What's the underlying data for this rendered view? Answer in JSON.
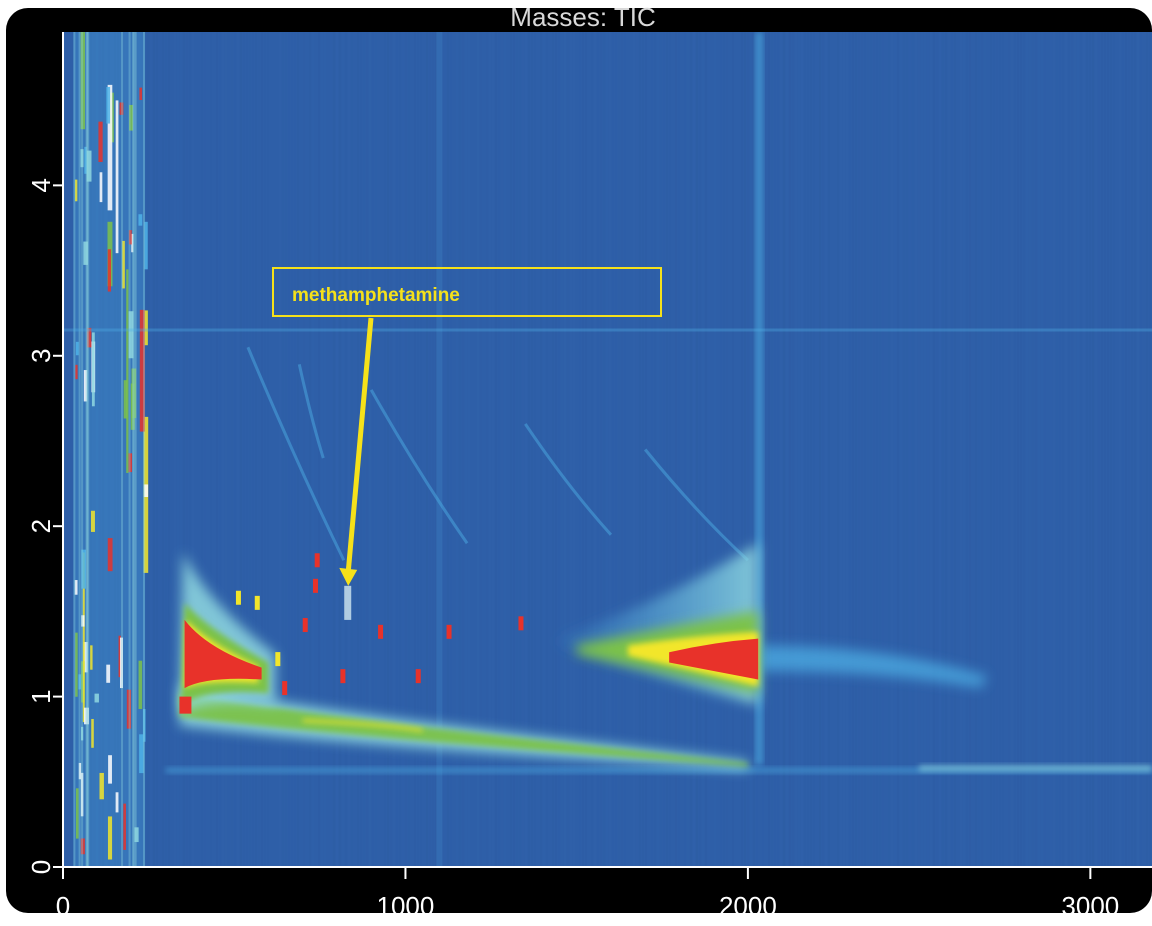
{
  "chart_data": {
    "type": "heatmap",
    "title": "Masses:  TIC",
    "xlabel": "",
    "ylabel": "",
    "xlim": [
      0,
      3180
    ],
    "ylim": [
      0,
      4.9
    ],
    "x_ticks": [
      "0",
      "1000",
      "2000",
      "3000"
    ],
    "y_ticks": [
      "0",
      "1",
      "2",
      "3",
      "4"
    ],
    "colormap": [
      "#2e5fa8",
      "#4fb3e8",
      "#8fd8e0",
      "#7cc24a",
      "#f2e62a",
      "#e8322a"
    ],
    "background_color": "#2e5fa8",
    "annotation": {
      "label": "methamphetamine",
      "target_x": 830,
      "target_y": 1.65,
      "color": "#f5e11a"
    },
    "features": {
      "early_streaks_x": [
        30,
        240
      ],
      "main_band": {
        "x": [
          340,
          2000
        ],
        "y_start": 0.95,
        "y_end": 0.6
      },
      "red_hotspot_1": {
        "x": [
          355,
          580
        ],
        "y": [
          1.05,
          1.45
        ]
      },
      "red_hotspot_2": {
        "x": [
          1770,
          2030
        ],
        "y": [
          1.1,
          1.3
        ]
      },
      "vertical_boundary_x": 2030,
      "horizontal_baseline_y": 0.57
    }
  }
}
